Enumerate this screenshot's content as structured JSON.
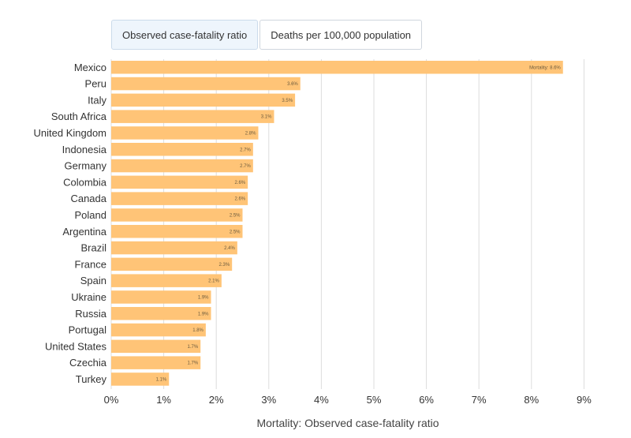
{
  "tabs": [
    {
      "label": "Observed case-fatality ratio",
      "active": true
    },
    {
      "label": "Deaths per 100,000 population",
      "active": false
    }
  ],
  "colors": {
    "bar": "#ffc477",
    "grid": "#dddddd"
  },
  "chart_data": {
    "type": "bar",
    "orientation": "horizontal",
    "title": "",
    "xlabel": "Mortality: Observed case-fatality ratio",
    "ylabel": "",
    "xlim": [
      0,
      9
    ],
    "xticks": [
      "0%",
      "1%",
      "2%",
      "3%",
      "4%",
      "5%",
      "6%",
      "7%",
      "8%",
      "9%"
    ],
    "grid": true,
    "categories": [
      "Mexico",
      "Peru",
      "Italy",
      "South Africa",
      "United Kingdom",
      "Indonesia",
      "Germany",
      "Colombia",
      "Canada",
      "Poland",
      "Argentina",
      "Brazil",
      "France",
      "Spain",
      "Ukraine",
      "Russia",
      "Portugal",
      "United States",
      "Czechia",
      "Turkey"
    ],
    "values": [
      8.6,
      3.6,
      3.5,
      3.1,
      2.8,
      2.7,
      2.7,
      2.6,
      2.6,
      2.5,
      2.5,
      2.4,
      2.3,
      2.1,
      1.9,
      1.9,
      1.8,
      1.7,
      1.7,
      1.1
    ],
    "data_labels": [
      "Mortality: 8.6%",
      "3.6%",
      "3.5%",
      "3.1%",
      "2.8%",
      "2.7%",
      "2.7%",
      "2.6%",
      "2.6%",
      "2.5%",
      "2.5%",
      "2.4%",
      "2.3%",
      "2.1%",
      "1.9%",
      "1.9%",
      "1.8%",
      "1.7%",
      "1.7%",
      "1.1%"
    ]
  }
}
